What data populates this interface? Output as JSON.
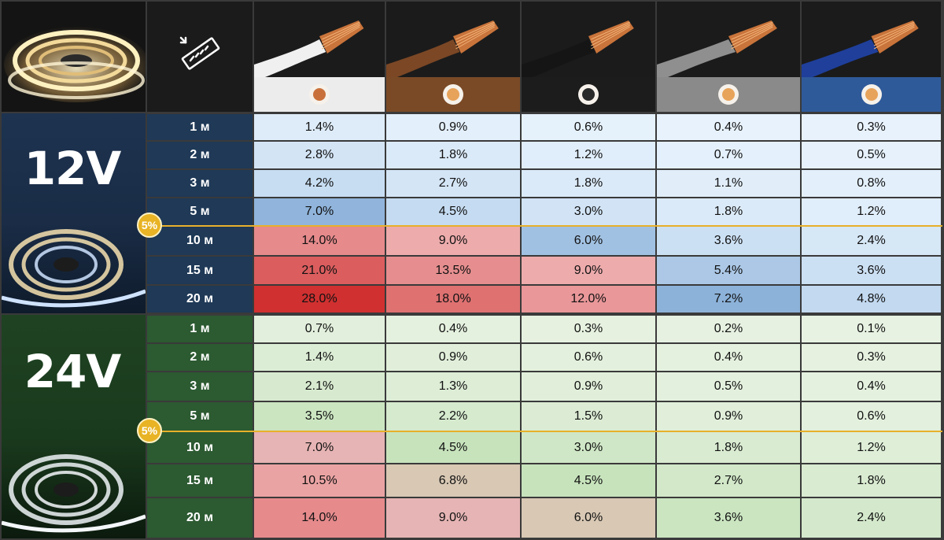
{
  "marker_label": "5%",
  "colors": {
    "limit_line": "#e7b02a",
    "cable_band": [
      "#ececec",
      "#7a4a26",
      "#1c1c1c",
      "#8a8a8a",
      "#2f5a9a"
    ]
  },
  "cables": [
    {
      "jacket": "white",
      "icon": "cable-cross-section-icon"
    },
    {
      "jacket": "brown",
      "icon": "cable-cross-section-icon"
    },
    {
      "jacket": "black",
      "icon": "cable-cross-section-icon"
    },
    {
      "jacket": "gray",
      "icon": "cable-cross-section-icon"
    },
    {
      "jacket": "blue",
      "icon": "cable-cross-section-icon"
    }
  ],
  "blocks": [
    {
      "voltage": "12V",
      "rows": [
        {
          "length": "1 м",
          "values": [
            "1.4%",
            "0.9%",
            "0.6%",
            "0.4%",
            "0.3%"
          ]
        },
        {
          "length": "2 м",
          "values": [
            "2.8%",
            "1.8%",
            "1.2%",
            "0.7%",
            "0.5%"
          ]
        },
        {
          "length": "3 м",
          "values": [
            "4.2%",
            "2.7%",
            "1.8%",
            "1.1%",
            "0.8%"
          ]
        },
        {
          "length": "5 м",
          "values": [
            "7.0%",
            "4.5%",
            "3.0%",
            "1.8%",
            "1.2%"
          ]
        },
        {
          "length": "10 м",
          "values": [
            "14.0%",
            "9.0%",
            "6.0%",
            "3.6%",
            "2.4%"
          ]
        },
        {
          "length": "15 м",
          "values": [
            "21.0%",
            "13.5%",
            "9.0%",
            "5.4%",
            "3.6%"
          ]
        },
        {
          "length": "20 м",
          "values": [
            "28.0%",
            "18.0%",
            "12.0%",
            "7.2%",
            "4.8%"
          ]
        }
      ]
    },
    {
      "voltage": "24V",
      "rows": [
        {
          "length": "1 м",
          "values": [
            "0.7%",
            "0.4%",
            "0.3%",
            "0.2%",
            "0.1%"
          ]
        },
        {
          "length": "2 м",
          "values": [
            "1.4%",
            "0.9%",
            "0.6%",
            "0.4%",
            "0.3%"
          ]
        },
        {
          "length": "3 м",
          "values": [
            "2.1%",
            "1.3%",
            "0.9%",
            "0.5%",
            "0.4%"
          ]
        },
        {
          "length": "5 м",
          "values": [
            "3.5%",
            "2.2%",
            "1.5%",
            "0.9%",
            "0.6%"
          ]
        },
        {
          "length": "10 м",
          "values": [
            "7.0%",
            "4.5%",
            "3.0%",
            "1.8%",
            "1.2%"
          ]
        },
        {
          "length": "15 м",
          "values": [
            "10.5%",
            "6.8%",
            "4.5%",
            "2.7%",
            "1.8%"
          ]
        },
        {
          "length": "20 м",
          "values": [
            "14.0%",
            "9.0%",
            "6.0%",
            "3.6%",
            "2.4%"
          ]
        }
      ]
    }
  ]
}
